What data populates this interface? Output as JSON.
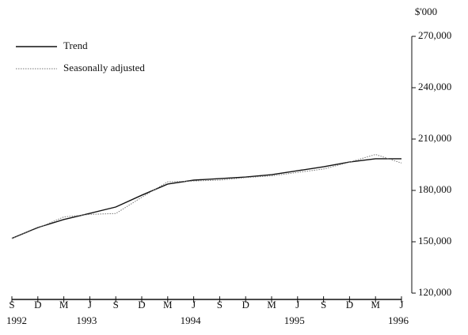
{
  "chart_data": {
    "type": "line",
    "y_unit": "$'000",
    "categories": [
      "S",
      "D",
      "M",
      "J",
      "S",
      "D",
      "M",
      "J",
      "S",
      "D",
      "M",
      "J",
      "S",
      "D",
      "M",
      "J"
    ],
    "years": [
      "1992",
      null,
      null,
      "1993",
      null,
      null,
      null,
      "1994",
      null,
      null,
      null,
      "1995",
      null,
      null,
      null,
      "1996"
    ],
    "series": [
      {
        "name": "Trend",
        "color": "#111111",
        "style": "solid",
        "values": [
          152000,
          158300,
          163000,
          166600,
          170300,
          177200,
          183700,
          186000,
          186900,
          187800,
          189200,
          191500,
          193800,
          196600,
          198500,
          198500
        ]
      },
      {
        "name": "Seasonally adjusted",
        "color": "#777777",
        "style": "dotted",
        "values": [
          152000,
          158000,
          164500,
          166000,
          166500,
          176000,
          185000,
          185500,
          186000,
          187500,
          188500,
          190500,
          192500,
          196500,
          201000,
          196000
        ]
      }
    ],
    "ylim": [
      120000,
      270000
    ],
    "yticks": [
      {
        "value": 120000,
        "label": "120,000"
      },
      {
        "value": 150000,
        "label": "150,000"
      },
      {
        "value": 180000,
        "label": "180,000"
      },
      {
        "value": 210000,
        "label": "210,000"
      },
      {
        "value": 240000,
        "label": "240,000"
      },
      {
        "value": 270000,
        "label": "270,000"
      }
    ],
    "legend": "top-left",
    "grid": false
  }
}
